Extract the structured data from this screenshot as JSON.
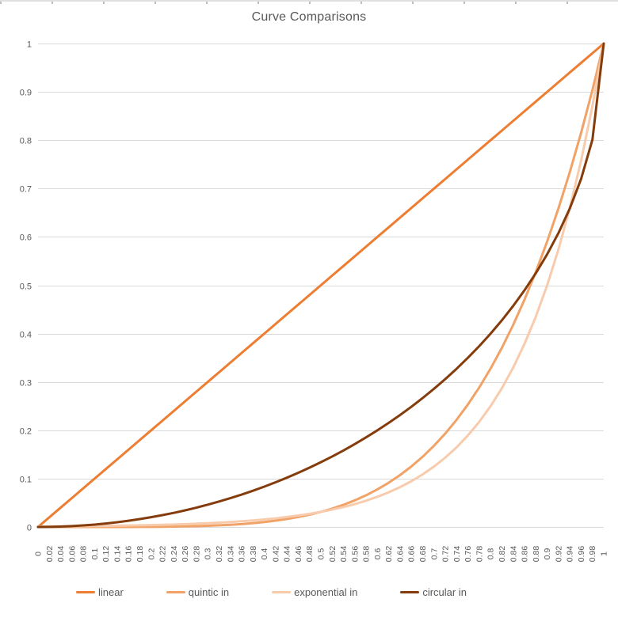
{
  "chart_data": {
    "type": "line",
    "title": "Curve Comparisons",
    "legend_position": "bottom",
    "grid": "horizontal",
    "ylim": [
      0,
      1
    ],
    "grid_color": "#D9D9D9",
    "axis_text_color": "#595959",
    "title_color": "#595959",
    "y_ticks": [
      "1",
      "0.9",
      "0.8",
      "0.7",
      "0.6",
      "0.5",
      "0.4",
      "0.3",
      "0.2",
      "0.1",
      "0"
    ],
    "categories": [
      "0",
      "0.02",
      "0.04",
      "0.06",
      "0.08",
      "0.1",
      "0.12",
      "0.14",
      "0.16",
      "0.18",
      "0.2",
      "0.22",
      "0.24",
      "0.26",
      "0.28",
      "0.3",
      "0.32",
      "0.34",
      "0.36",
      "0.38",
      "0.4",
      "0.42",
      "0.44",
      "0.46",
      "0.48",
      "0.5",
      "0.52",
      "0.54",
      "0.56",
      "0.58",
      "0.6",
      "0.62",
      "0.64",
      "0.66",
      "0.68",
      "0.7",
      "0.72",
      "0.74",
      "0.76",
      "0.78",
      "0.8",
      "0.82",
      "0.84",
      "0.86",
      "0.88",
      "0.9",
      "0.92",
      "0.94",
      "0.96",
      "0.98",
      "1"
    ],
    "series": [
      {
        "name": "linear",
        "color": "#ED7D31",
        "values": [
          0,
          0.02,
          0.04,
          0.06,
          0.08,
          0.1,
          0.12,
          0.14,
          0.16,
          0.18,
          0.2,
          0.22,
          0.24,
          0.26,
          0.28,
          0.3,
          0.32,
          0.34,
          0.36,
          0.38,
          0.4,
          0.42,
          0.44,
          0.46,
          0.48,
          0.5,
          0.52,
          0.54,
          0.56,
          0.58,
          0.6,
          0.62,
          0.64,
          0.66,
          0.68,
          0.7,
          0.72,
          0.74,
          0.76,
          0.78,
          0.8,
          0.82,
          0.84,
          0.86,
          0.88,
          0.9,
          0.92,
          0.94,
          0.96,
          0.98,
          1
        ]
      },
      {
        "name": "quintic in",
        "color": "#F1A267",
        "values": [
          0,
          0,
          0,
          0,
          0,
          0,
          0,
          0.0001,
          0.0001,
          0.0002,
          0.0003,
          0.0005,
          0.0008,
          0.0012,
          0.0017,
          0.0024,
          0.0034,
          0.0045,
          0.006,
          0.0079,
          0.0102,
          0.0131,
          0.0165,
          0.0206,
          0.0255,
          0.0313,
          0.038,
          0.0459,
          0.0551,
          0.0656,
          0.0778,
          0.0916,
          0.1074,
          0.1252,
          0.1454,
          0.1681,
          0.1935,
          0.2219,
          0.2536,
          0.2887,
          0.3277,
          0.3707,
          0.4182,
          0.4704,
          0.5277,
          0.5905,
          0.6591,
          0.7339,
          0.8154,
          0.9039,
          1
        ]
      },
      {
        "name": "exponential in",
        "color": "#F8CBAD",
        "values": [
          0.001,
          0.0011,
          0.0013,
          0.0015,
          0.0017,
          0.002,
          0.0022,
          0.0026,
          0.003,
          0.0034,
          0.0039,
          0.0045,
          0.0052,
          0.0059,
          0.0068,
          0.0078,
          0.009,
          0.0103,
          0.0118,
          0.0136,
          0.0156,
          0.0179,
          0.0206,
          0.0237,
          0.0272,
          0.0313,
          0.0359,
          0.0412,
          0.0474,
          0.0544,
          0.0625,
          0.0718,
          0.0825,
          0.0947,
          0.1088,
          0.125,
          0.1436,
          0.1649,
          0.1895,
          0.2176,
          0.25,
          0.2872,
          0.3299,
          0.3789,
          0.4353,
          0.5,
          0.5743,
          0.6598,
          0.7579,
          0.8706,
          1
        ]
      },
      {
        "name": "circular in",
        "color": "#843C0C",
        "values": [
          0,
          0.0002,
          0.0008,
          0.0018,
          0.0032,
          0.005,
          0.0072,
          0.0098,
          0.0129,
          0.0163,
          0.0202,
          0.0245,
          0.0292,
          0.0344,
          0.04,
          0.0461,
          0.0526,
          0.0596,
          0.067,
          0.075,
          0.0835,
          0.0925,
          0.102,
          0.1121,
          0.1227,
          0.134,
          0.1458,
          0.1583,
          0.1715,
          0.1854,
          0.2,
          0.2154,
          0.2316,
          0.2487,
          0.2668,
          0.2859,
          0.306,
          0.3274,
          0.3501,
          0.3742,
          0.4,
          0.4276,
          0.4574,
          0.4897,
          0.525,
          0.5641,
          0.6081,
          0.6588,
          0.72,
          0.801,
          1
        ]
      }
    ]
  }
}
